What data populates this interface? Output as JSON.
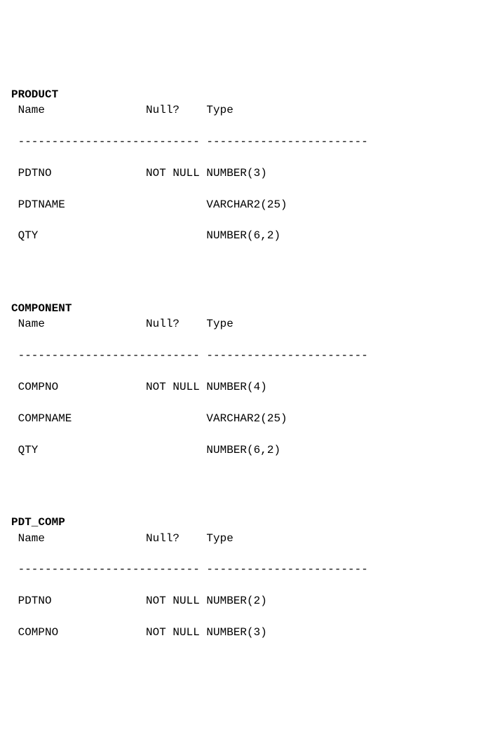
{
  "tables": [
    {
      "title": "PRODUCT",
      "headers": {
        "name": "Name",
        "null": "Null?",
        "type": "Type"
      },
      "separator": {
        "name": "-------------------",
        "null": "--------",
        "type": "------------------------"
      },
      "rows": [
        {
          "name": "PDTNO",
          "null": "NOT NULL",
          "type": "NUMBER(3)"
        },
        {
          "name": "PDTNAME",
          "null": "",
          "type": "VARCHAR2(25)"
        },
        {
          "name": "QTY",
          "null": "",
          "type": "NUMBER(6,2)"
        }
      ]
    },
    {
      "title": "COMPONENT",
      "headers": {
        "name": "Name",
        "null": "Null?",
        "type": "Type"
      },
      "separator": {
        "name": "-------------------",
        "null": "--------",
        "type": "------------------------"
      },
      "rows": [
        {
          "name": "COMPNO",
          "null": "NOT NULL",
          "type": "NUMBER(4)"
        },
        {
          "name": "COMPNAME",
          "null": "",
          "type": "VARCHAR2(25)"
        },
        {
          "name": "QTY",
          "null": "",
          "type": "NUMBER(6,2)"
        }
      ]
    },
    {
      "title": "PDT_COMP",
      "headers": {
        "name": "Name",
        "null": "Null?",
        "type": "Type"
      },
      "separator": {
        "name": "-------------------",
        "null": "--------",
        "type": "------------------------"
      },
      "rows": [
        {
          "name": "PDTNO",
          "null": "NOT NULL",
          "type": "NUMBER(2)"
        },
        {
          "name": "COMPNO",
          "null": "NOT NULL",
          "type": "NUMBER(3)"
        }
      ]
    }
  ]
}
